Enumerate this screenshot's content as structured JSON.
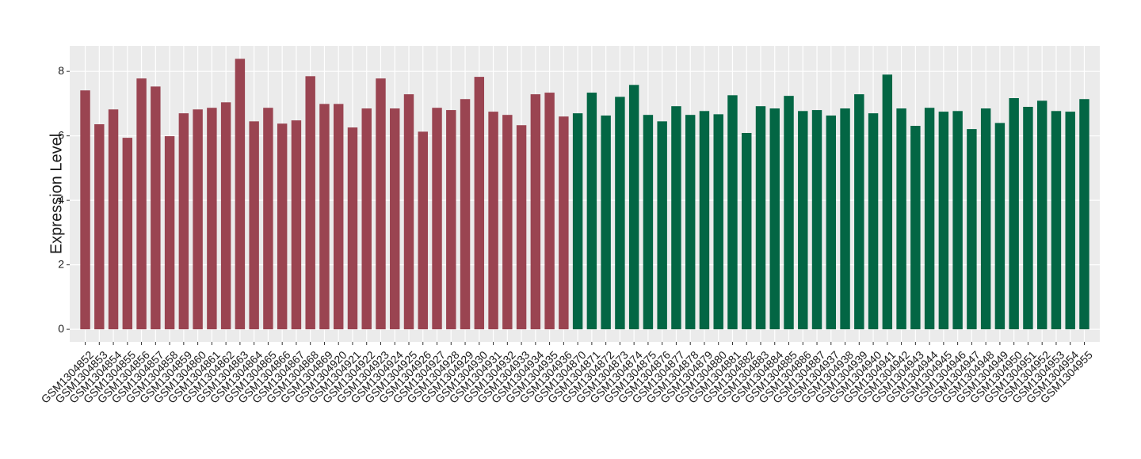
{
  "chart_data": {
    "type": "bar",
    "y_label": "Expression Level",
    "categories": [
      "GSM1304852",
      "GSM1304853",
      "GSM1304854",
      "GSM1304855",
      "GSM1304856",
      "GSM1304857",
      "GSM1304858",
      "GSM1304859",
      "GSM1304860",
      "GSM1304861",
      "GSM1304862",
      "GSM1304863",
      "GSM1304864",
      "GSM1304865",
      "GSM1304866",
      "GSM1304867",
      "GSM1304868",
      "GSM1304869",
      "GSM1304920",
      "GSM1304921",
      "GSM1304922",
      "GSM1304923",
      "GSM1304924",
      "GSM1304925",
      "GSM1304926",
      "GSM1304927",
      "GSM1304928",
      "GSM1304929",
      "GSM1304930",
      "GSM1304931",
      "GSM1304932",
      "GSM1304933",
      "GSM1304934",
      "GSM1304935",
      "GSM1304936",
      "GSM1304870",
      "GSM1304871",
      "GSM1304872",
      "GSM1304873",
      "GSM1304874",
      "GSM1304875",
      "GSM1304876",
      "GSM1304877",
      "GSM1304878",
      "GSM1304879",
      "GSM1304880",
      "GSM1304881",
      "GSM1304882",
      "GSM1304883",
      "GSM1304884",
      "GSM1304885",
      "GSM1304886",
      "GSM1304887",
      "GSM1304937",
      "GSM1304938",
      "GSM1304939",
      "GSM1304940",
      "GSM1304941",
      "GSM1304942",
      "GSM1304943",
      "GSM1304944",
      "GSM1304945",
      "GSM1304946",
      "GSM1304947",
      "GSM1304948",
      "GSM1304949",
      "GSM1304950",
      "GSM1304951",
      "GSM1304952",
      "GSM1304953",
      "GSM1304954",
      "GSM1304955"
    ],
    "values": [
      7.41,
      6.36,
      6.82,
      5.94,
      7.78,
      7.53,
      5.99,
      6.7,
      6.82,
      6.87,
      7.04,
      8.39,
      6.45,
      6.87,
      6.38,
      6.48,
      7.85,
      6.99,
      6.99,
      6.26,
      6.85,
      7.78,
      6.85,
      7.29,
      6.13,
      6.87,
      6.8,
      7.14,
      7.83,
      6.75,
      6.65,
      6.33,
      7.29,
      7.34,
      6.6,
      6.7,
      7.34,
      6.63,
      7.21,
      7.58,
      6.65,
      6.45,
      6.92,
      6.65,
      6.77,
      6.67,
      7.26,
      6.09,
      6.92,
      6.85,
      7.24,
      6.77,
      6.8,
      6.63,
      6.85,
      7.29,
      6.7,
      7.9,
      6.85,
      6.31,
      6.87,
      6.75,
      6.77,
      6.21,
      6.85,
      6.4,
      7.17,
      6.9,
      7.09,
      6.77,
      6.75,
      7.14
    ],
    "colors": [
      "#9a4451",
      "#9a4451",
      "#9a4451",
      "#9a4451",
      "#9a4451",
      "#9a4451",
      "#9a4451",
      "#9a4451",
      "#9a4451",
      "#9a4451",
      "#9a4451",
      "#9a4451",
      "#9a4451",
      "#9a4451",
      "#9a4451",
      "#9a4451",
      "#9a4451",
      "#9a4451",
      "#9a4451",
      "#9a4451",
      "#9a4451",
      "#9a4451",
      "#9a4451",
      "#9a4451",
      "#9a4451",
      "#9a4451",
      "#9a4451",
      "#9a4451",
      "#9a4451",
      "#9a4451",
      "#9a4451",
      "#9a4451",
      "#9a4451",
      "#9a4451",
      "#9a4451",
      "#036644",
      "#036644",
      "#036644",
      "#036644",
      "#036644",
      "#036644",
      "#036644",
      "#036644",
      "#036644",
      "#036644",
      "#036644",
      "#036644",
      "#036644",
      "#036644",
      "#036644",
      "#036644",
      "#036644",
      "#036644",
      "#036644",
      "#036644",
      "#036644",
      "#036644",
      "#036644",
      "#036644",
      "#036644",
      "#036644",
      "#036644",
      "#036644",
      "#036644",
      "#036644",
      "#036644",
      "#036644",
      "#036644",
      "#036644",
      "#036644",
      "#036644",
      "#036644"
    ],
    "ylim": [
      -0.39,
      8.79
    ],
    "yticks": [
      0,
      2,
      4,
      6,
      8
    ],
    "grid": true
  }
}
